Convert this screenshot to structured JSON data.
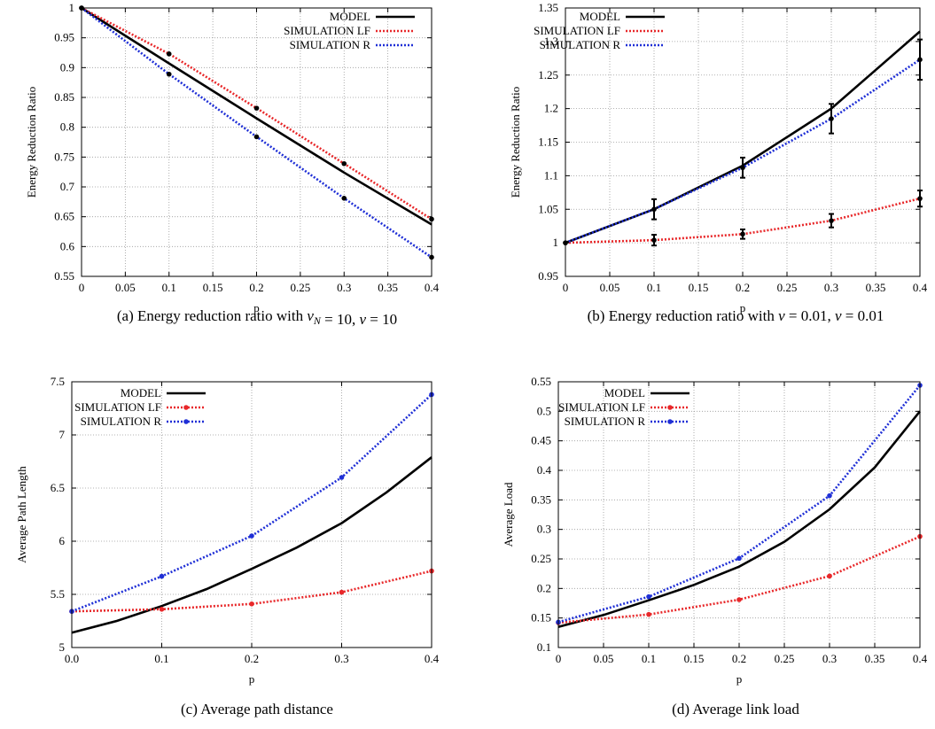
{
  "chart_data": [
    {
      "type": "line",
      "panel": "a",
      "caption": "(a)  Energy reduction ratio with ",
      "caption_math": [
        [
          "ν",
          "N"
        ],
        " = 10, ",
        [
          "ν",
          ""
        ],
        " = 10"
      ],
      "xlabel": "p",
      "ylabel": "Energy Reduction Ratio",
      "xlim": [
        0,
        0.4
      ],
      "ylim": [
        0.55,
        1
      ],
      "xticks": [
        "0",
        "0.05",
        "0.1",
        "0.15",
        "0.2",
        "0.25",
        "0.3",
        "0.35",
        "0.4"
      ],
      "yticks": [
        "0.55",
        "0.6",
        "0.65",
        "0.7",
        "0.75",
        "0.8",
        "0.85",
        "0.9",
        "0.95",
        "1"
      ],
      "grid": true,
      "legend": "top-right",
      "series": [
        {
          "name": "MODEL",
          "color": "#000000",
          "style": "solid",
          "x": [
            0,
            0.1,
            0.2,
            0.3,
            0.4
          ],
          "y": [
            1.0,
            0.907,
            0.815,
            0.724,
            0.637
          ]
        },
        {
          "name": "SIMULATION LF",
          "color": "#e8282a",
          "style": "dotted",
          "markers": true,
          "x": [
            0,
            0.1,
            0.2,
            0.3,
            0.4
          ],
          "y": [
            1.0,
            0.923,
            0.832,
            0.739,
            0.646
          ]
        },
        {
          "name": "SIMULATION R",
          "color": "#1f2fd6",
          "style": "dotted",
          "markers": true,
          "x": [
            0,
            0.1,
            0.2,
            0.3,
            0.4
          ],
          "y": [
            1.0,
            0.889,
            0.784,
            0.681,
            0.582
          ]
        }
      ]
    },
    {
      "type": "line",
      "panel": "b",
      "caption": "(b)  Energy reduction ratio with ",
      "caption_math": [
        [
          "ν",
          ""
        ],
        " = 0.01, ",
        [
          "ν",
          ""
        ],
        " = 0.01"
      ],
      "xlabel": "p",
      "ylabel": "Energy Reduction Ratio",
      "xlim": [
        0,
        0.4
      ],
      "ylim": [
        0.95,
        1.35
      ],
      "xticks": [
        "0",
        "0.05",
        "0.1",
        "0.15",
        "0.2",
        "0.25",
        "0.3",
        "0.35",
        "0.4"
      ],
      "yticks": [
        "0.95",
        "1",
        "1.05",
        "1.1",
        "1.15",
        "1.2",
        "1.25",
        "1.3",
        "1.35"
      ],
      "grid": true,
      "legend": "top-left",
      "series": [
        {
          "name": "MODEL",
          "color": "#000000",
          "style": "solid",
          "x": [
            0,
            0.1,
            0.2,
            0.3,
            0.4
          ],
          "y": [
            1.0,
            1.05,
            1.115,
            1.2,
            1.315
          ]
        },
        {
          "name": "SIMULATION LF",
          "color": "#e8282a",
          "style": "dotted",
          "markers": true,
          "x": [
            0,
            0.1,
            0.2,
            0.3,
            0.4
          ],
          "y": [
            1.0,
            1.004,
            1.013,
            1.033,
            1.066
          ],
          "err": [
            0,
            0.008,
            0.007,
            0.01,
            0.012
          ]
        },
        {
          "name": "SIMULATION R",
          "color": "#1f2fd6",
          "style": "dotted",
          "markers": true,
          "x": [
            0,
            0.1,
            0.2,
            0.3,
            0.4
          ],
          "y": [
            1.0,
            1.05,
            1.112,
            1.185,
            1.273
          ],
          "err": [
            0,
            0.015,
            0.015,
            0.022,
            0.03
          ]
        }
      ]
    },
    {
      "type": "line",
      "panel": "c",
      "caption": "(c)  Average path distance",
      "xlabel": "p",
      "ylabel": "Average Path Length",
      "xlim": [
        0,
        0.4
      ],
      "ylim": [
        5,
        7.5
      ],
      "xticks": [
        "0.0",
        "0.1",
        "0.2",
        "0.3",
        "0.4"
      ],
      "yticks": [
        "5",
        "5.5",
        "6",
        "6.5",
        "7",
        "7.5"
      ],
      "grid": true,
      "legend": "top-left",
      "series": [
        {
          "name": "MODEL",
          "color": "#000000",
          "style": "solid",
          "x": [
            0,
            0.05,
            0.1,
            0.15,
            0.2,
            0.25,
            0.3,
            0.35,
            0.4
          ],
          "y": [
            5.14,
            5.25,
            5.39,
            5.55,
            5.74,
            5.94,
            6.17,
            6.46,
            6.79
          ]
        },
        {
          "name": "SIMULATION LF",
          "color": "#e8282a",
          "style": "dotted",
          "markers": true,
          "x": [
            0,
            0.1,
            0.2,
            0.3,
            0.4
          ],
          "y": [
            5.34,
            5.36,
            5.41,
            5.52,
            5.72
          ]
        },
        {
          "name": "SIMULATION R",
          "color": "#1f2fd6",
          "style": "dotted",
          "markers": true,
          "x": [
            0,
            0.1,
            0.2,
            0.3,
            0.4
          ],
          "y": [
            5.34,
            5.67,
            6.05,
            6.6,
            7.38
          ]
        }
      ]
    },
    {
      "type": "line",
      "panel": "d",
      "caption": "(d)  Average link load",
      "xlabel": "p",
      "ylabel": "Average Load",
      "xlim": [
        0,
        0.4
      ],
      "ylim": [
        0.1,
        0.55
      ],
      "xticks": [
        "0",
        "0.05",
        "0.1",
        "0.15",
        "0.2",
        "0.25",
        "0.3",
        "0.35",
        "0.4"
      ],
      "yticks": [
        "0.1",
        "0.15",
        "0.2",
        "0.25",
        "0.3",
        "0.35",
        "0.4",
        "0.45",
        "0.5",
        "0.55"
      ],
      "grid": true,
      "legend": "top-left",
      "series": [
        {
          "name": "MODEL",
          "color": "#000000",
          "style": "solid",
          "x": [
            0,
            0.05,
            0.1,
            0.15,
            0.2,
            0.25,
            0.3,
            0.35,
            0.4
          ],
          "y": [
            0.135,
            0.155,
            0.18,
            0.206,
            0.237,
            0.279,
            0.334,
            0.405,
            0.5
          ]
        },
        {
          "name": "SIMULATION LF",
          "color": "#e8282a",
          "style": "dotted",
          "markers": true,
          "x": [
            0,
            0.1,
            0.2,
            0.3,
            0.4
          ],
          "y": [
            0.142,
            0.156,
            0.181,
            0.221,
            0.288
          ]
        },
        {
          "name": "SIMULATION R",
          "color": "#1f2fd6",
          "style": "dotted",
          "markers": true,
          "x": [
            0,
            0.1,
            0.2,
            0.3,
            0.4
          ],
          "y": [
            0.143,
            0.186,
            0.251,
            0.357,
            0.544
          ]
        }
      ]
    }
  ]
}
